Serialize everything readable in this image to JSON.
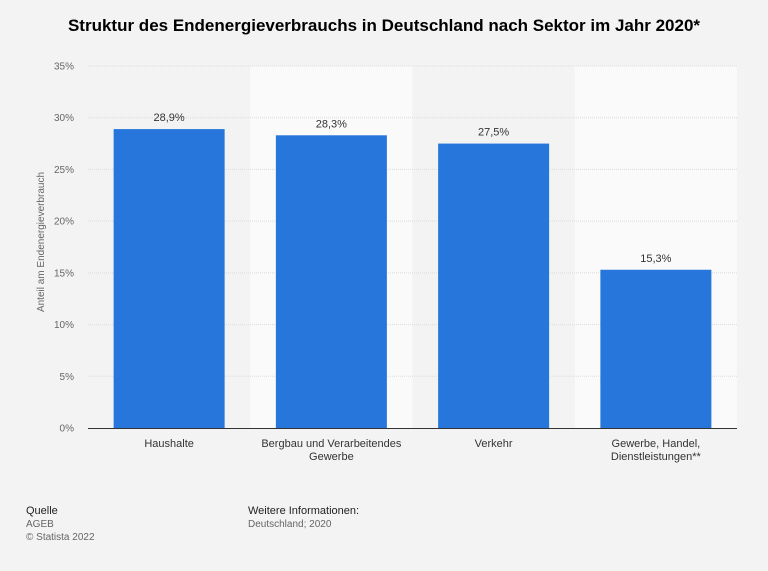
{
  "chart_data": {
    "type": "bar",
    "title": "Struktur des Endenergieverbrauchs in Deutschland nach Sektor im Jahr 2020*",
    "ylabel": "Anteil am Endenergieverbrauch",
    "xlabel": "",
    "categories": [
      [
        "Haushalte"
      ],
      [
        "Bergbau und Verarbeitendes",
        "Gewerbe"
      ],
      [
        "Verkehr"
      ],
      [
        "Gewerbe, Handel,",
        "Dienstleistungen**"
      ]
    ],
    "values": [
      28.9,
      28.3,
      27.5,
      15.3
    ],
    "value_labels": [
      "28,9%",
      "28,3%",
      "27,5%",
      "15,3%"
    ],
    "ylim": [
      0,
      35
    ],
    "yticks": [
      0,
      5,
      10,
      15,
      20,
      25,
      30,
      35
    ],
    "ytick_labels": [
      "0%",
      "5%",
      "10%",
      "15%",
      "20%",
      "25%",
      "30%",
      "35%"
    ],
    "bar_color": "#2776dc",
    "grid": true
  },
  "footer": {
    "source_heading": "Quelle",
    "source": "AGEB",
    "copyright": "© Statista 2022",
    "info_heading": "Weitere Informationen:",
    "info": "Deutschland; 2020"
  }
}
